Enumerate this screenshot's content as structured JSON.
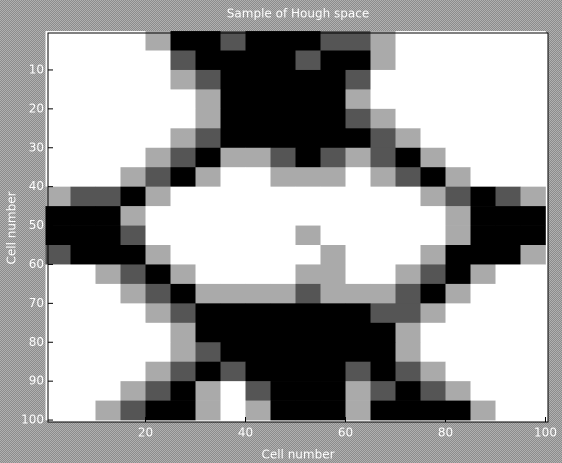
{
  "chart_data": {
    "type": "heatmap",
    "title": "Sample of Hough space",
    "xlabel": "Cell number",
    "ylabel": "Cell number",
    "x": [
      2.5,
      7.5,
      12.5,
      17.5,
      22.5,
      27.5,
      32.5,
      37.5,
      42.5,
      47.5,
      52.5,
      57.5,
      62.5,
      67.5,
      72.5,
      77.5,
      82.5,
      87.5,
      92.5,
      97.5
    ],
    "y": [
      2.5,
      7.5,
      12.5,
      17.5,
      22.5,
      27.5,
      32.5,
      37.5,
      42.5,
      47.5,
      52.5,
      57.5,
      62.5,
      67.5,
      72.5,
      77.5,
      82.5,
      87.5,
      92.5,
      97.5
    ],
    "z": [
      [
        0,
        0,
        0,
        0,
        1,
        3,
        3,
        2,
        3,
        3,
        3,
        2,
        2,
        1,
        0,
        0,
        0,
        0,
        0,
        0
      ],
      [
        0,
        0,
        0,
        0,
        0,
        2,
        3,
        3,
        3,
        3,
        2,
        3,
        3,
        1,
        0,
        0,
        0,
        0,
        0,
        0
      ],
      [
        0,
        0,
        0,
        0,
        0,
        1,
        2,
        3,
        3,
        3,
        3,
        3,
        2,
        0,
        0,
        0,
        0,
        0,
        0,
        0
      ],
      [
        0,
        0,
        0,
        0,
        0,
        0,
        1,
        3,
        3,
        3,
        3,
        3,
        1,
        0,
        0,
        0,
        0,
        0,
        0,
        0
      ],
      [
        0,
        0,
        0,
        0,
        0,
        0,
        1,
        3,
        3,
        3,
        3,
        3,
        2,
        1,
        0,
        0,
        0,
        0,
        0,
        0
      ],
      [
        0,
        0,
        0,
        0,
        0,
        1,
        2,
        3,
        3,
        3,
        3,
        3,
        3,
        2,
        1,
        0,
        0,
        0,
        0,
        0
      ],
      [
        0,
        0,
        0,
        0,
        1,
        2,
        3,
        1,
        1,
        2,
        3,
        2,
        1,
        2,
        3,
        1,
        0,
        0,
        0,
        0
      ],
      [
        0,
        0,
        0,
        1,
        2,
        3,
        1,
        0,
        0,
        1,
        1,
        1,
        0,
        1,
        2,
        3,
        1,
        0,
        0,
        0
      ],
      [
        1,
        2,
        2,
        3,
        1,
        0,
        0,
        0,
        0,
        0,
        0,
        0,
        0,
        0,
        0,
        1,
        2,
        3,
        2,
        1
      ],
      [
        3,
        3,
        3,
        1,
        0,
        0,
        0,
        0,
        0,
        0,
        0,
        0,
        0,
        0,
        0,
        0,
        1,
        3,
        3,
        3
      ],
      [
        3,
        3,
        3,
        2,
        0,
        0,
        0,
        0,
        0,
        0,
        1,
        0,
        0,
        0,
        0,
        0,
        1,
        3,
        3,
        3
      ],
      [
        2,
        3,
        3,
        3,
        1,
        0,
        0,
        0,
        0,
        0,
        0,
        1,
        0,
        0,
        0,
        1,
        3,
        3,
        3,
        1
      ],
      [
        0,
        0,
        1,
        2,
        3,
        1,
        0,
        0,
        0,
        0,
        1,
        1,
        0,
        0,
        1,
        2,
        3,
        1,
        0,
        0
      ],
      [
        0,
        0,
        0,
        1,
        2,
        3,
        1,
        1,
        1,
        1,
        2,
        1,
        1,
        1,
        2,
        3,
        1,
        0,
        0,
        0
      ],
      [
        0,
        0,
        0,
        0,
        1,
        2,
        3,
        3,
        3,
        3,
        3,
        3,
        3,
        2,
        2,
        1,
        0,
        0,
        0,
        0
      ],
      [
        0,
        0,
        0,
        0,
        0,
        1,
        3,
        3,
        3,
        3,
        3,
        3,
        3,
        3,
        1,
        0,
        0,
        0,
        0,
        0
      ],
      [
        0,
        0,
        0,
        0,
        0,
        1,
        2,
        3,
        3,
        3,
        3,
        3,
        3,
        3,
        1,
        0,
        0,
        0,
        0,
        0
      ],
      [
        0,
        0,
        0,
        0,
        1,
        2,
        3,
        2,
        3,
        3,
        3,
        3,
        2,
        3,
        2,
        1,
        0,
        0,
        0,
        0
      ],
      [
        0,
        0,
        0,
        1,
        2,
        3,
        1,
        0,
        2,
        3,
        3,
        3,
        1,
        2,
        3,
        2,
        1,
        0,
        0,
        0
      ],
      [
        0,
        0,
        1,
        2,
        3,
        3,
        1,
        0,
        1,
        3,
        3,
        3,
        1,
        3,
        3,
        3,
        3,
        1,
        0,
        0
      ]
    ],
    "zlim": [
      0,
      3
    ],
    "xlim": [
      0.5,
      100.5
    ],
    "ylim": [
      100.5,
      0.5
    ],
    "xticks": [
      20,
      40,
      60,
      80,
      100
    ],
    "yticks": [
      10,
      20,
      30,
      40,
      50,
      60,
      70,
      80,
      90,
      100
    ]
  }
}
